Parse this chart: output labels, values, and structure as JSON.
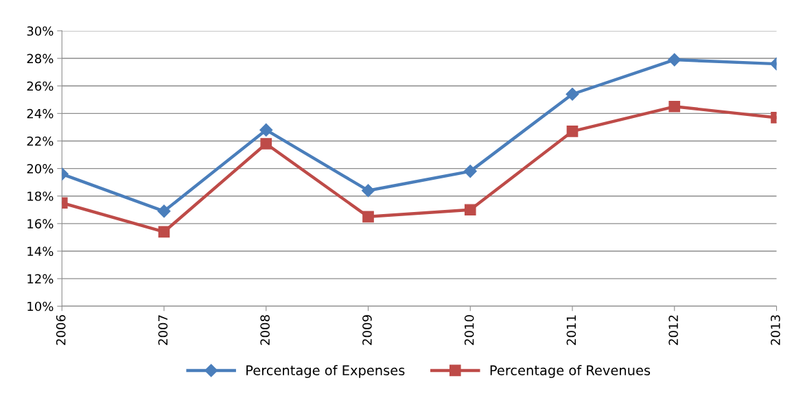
{
  "chart_data": {
    "type": "line",
    "categories": [
      "2006",
      "2007",
      "2008",
      "2009",
      "2010",
      "2011",
      "2012",
      "2013"
    ],
    "series": [
      {
        "name": "Percentage of Expenses",
        "color": "#4a7ebb",
        "marker": "diamond",
        "values": [
          19.6,
          16.9,
          22.8,
          18.4,
          19.8,
          25.4,
          27.9,
          27.6
        ]
      },
      {
        "name": "Percentage of Revenues",
        "color": "#be4b48",
        "marker": "square",
        "values": [
          17.5,
          15.4,
          21.8,
          16.5,
          17.0,
          22.7,
          24.5,
          23.7
        ]
      }
    ],
    "ylim": [
      10,
      30
    ],
    "yticks": [
      {
        "value": 10,
        "label": "10%"
      },
      {
        "value": 12,
        "label": "12%"
      },
      {
        "value": 14,
        "label": "14%"
      },
      {
        "value": 16,
        "label": "16%"
      },
      {
        "value": 18,
        "label": "18%"
      },
      {
        "value": 20,
        "label": "20%"
      },
      {
        "value": 22,
        "label": "22%"
      },
      {
        "value": 24,
        "label": "24%"
      },
      {
        "value": 26,
        "label": "26%"
      },
      {
        "value": 28,
        "label": "28%"
      },
      {
        "value": 30,
        "label": "30%"
      }
    ],
    "grid": "y",
    "legend": "bottom",
    "line_style": "solid"
  }
}
